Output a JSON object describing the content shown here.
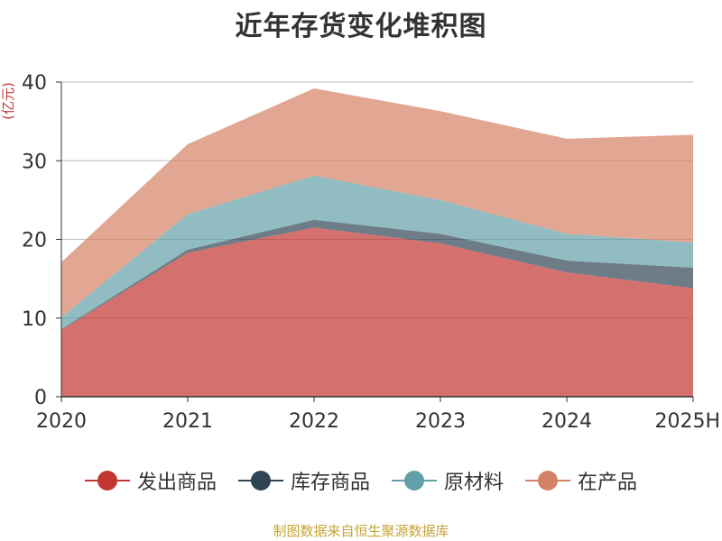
{
  "title": "近年存货变化堆积图",
  "source_note": "制图数据来自恒生聚源数据库",
  "chart_data": {
    "type": "area",
    "stacked": true,
    "title": "近年存货变化堆积图",
    "ylabel": "(亿元)",
    "xlabel": "",
    "categories": [
      "2020",
      "2021",
      "2022",
      "2023",
      "2024",
      "2025H"
    ],
    "ylim": [
      0,
      40
    ],
    "yticks": [
      0,
      10,
      20,
      30,
      40
    ],
    "grid": true,
    "legend_position": "bottom",
    "series": [
      {
        "name": "发出商品",
        "color": "#c23531",
        "values": [
          8.5,
          18.3,
          21.5,
          19.5,
          15.8,
          13.8
        ]
      },
      {
        "name": "库存商品",
        "color": "#2f4554",
        "values": [
          0.1,
          0.4,
          1.0,
          1.2,
          1.5,
          2.6
        ]
      },
      {
        "name": "原材料",
        "color": "#61a0a8",
        "values": [
          1.5,
          4.5,
          5.6,
          4.3,
          3.4,
          3.2
        ]
      },
      {
        "name": "在产品",
        "color": "#d48265",
        "values": [
          7.0,
          8.9,
          11.1,
          11.3,
          12.1,
          13.7
        ]
      }
    ]
  }
}
